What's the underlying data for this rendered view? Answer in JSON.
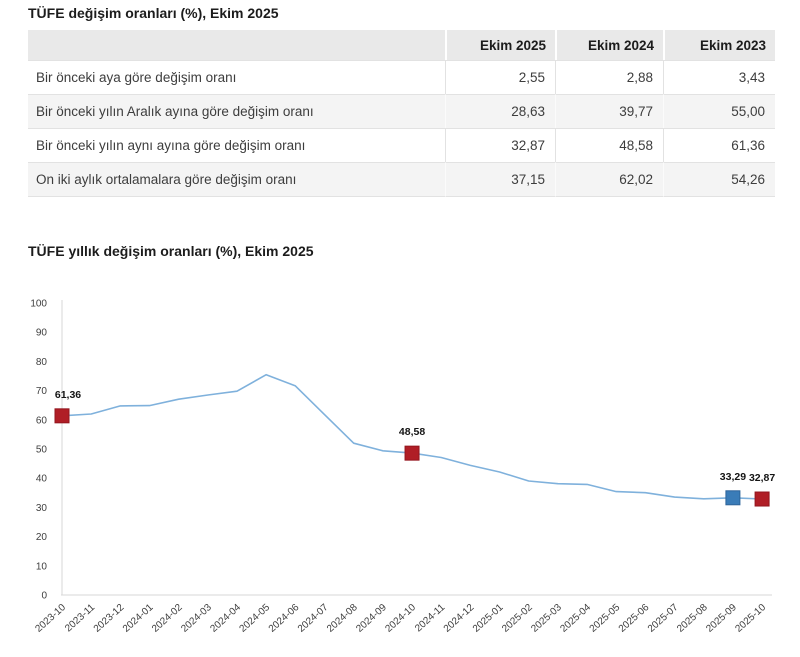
{
  "table_section": {
    "title": "TÜFE değişim oranları (%), Ekim 2025",
    "columns": [
      "Ekim 2025",
      "Ekim 2024",
      "Ekim 2023"
    ],
    "rows": [
      {
        "label": "Bir önceki aya göre değişim oranı",
        "values": [
          "2,55",
          "2,88",
          "3,43"
        ]
      },
      {
        "label": "Bir önceki yılın Aralık ayına göre değişim oranı",
        "values": [
          "28,63",
          "39,77",
          "55,00"
        ]
      },
      {
        "label": "Bir önceki yılın aynı ayına göre değişim oranı",
        "values": [
          "32,87",
          "48,58",
          "61,36"
        ]
      },
      {
        "label": "On iki aylık ortalamalara göre değişim oranı",
        "values": [
          "37,15",
          "62,02",
          "54,26"
        ]
      }
    ]
  },
  "chart_section": {
    "title": "TÜFE yıllık değişim oranları (%), Ekim 2025"
  },
  "chart_data": {
    "type": "line",
    "title": "TÜFE yıllık değişim oranları (%), Ekim 2025",
    "x": [
      "2023-10",
      "2023-11",
      "2023-12",
      "2024-01",
      "2024-02",
      "2024-03",
      "2024-04",
      "2024-05",
      "2024-06",
      "2024-07",
      "2024-08",
      "2024-09",
      "2024-10",
      "2024-11",
      "2024-12",
      "2025-01",
      "2025-02",
      "2025-03",
      "2025-04",
      "2025-05",
      "2025-06",
      "2025-07",
      "2025-08",
      "2025-09",
      "2025-10"
    ],
    "series": [
      {
        "name": "TÜFE yıllık değişim oranı (%)",
        "values": [
          61.36,
          61.98,
          64.77,
          64.86,
          67.07,
          68.5,
          69.8,
          75.45,
          71.6,
          61.78,
          51.97,
          49.38,
          48.58,
          47.09,
          44.38,
          42.12,
          39.05,
          38.1,
          37.86,
          35.41,
          35.05,
          33.52,
          32.95,
          33.29,
          32.87
        ]
      }
    ],
    "ylim": [
      0,
      100
    ],
    "ytick_step": 10,
    "grid": false,
    "legend": "none",
    "line_color": "#7FB1DC",
    "axis_color": "#d7d7d7",
    "tick_label_color": "#3e3e3e",
    "marker_label_color": "#141414",
    "highlight_markers": [
      {
        "x": "2023-10",
        "label": "61,36",
        "fill": "#B01E26",
        "stroke": "#93161e"
      },
      {
        "x": "2024-10",
        "label": "48,58",
        "fill": "#B01E26",
        "stroke": "#93161e"
      },
      {
        "x": "2025-09",
        "label": "33,29",
        "fill": "#3A7CB8",
        "stroke": "#2e649a"
      },
      {
        "x": "2025-10",
        "label": "32,87",
        "fill": "#B01E26",
        "stroke": "#93161e"
      }
    ]
  }
}
